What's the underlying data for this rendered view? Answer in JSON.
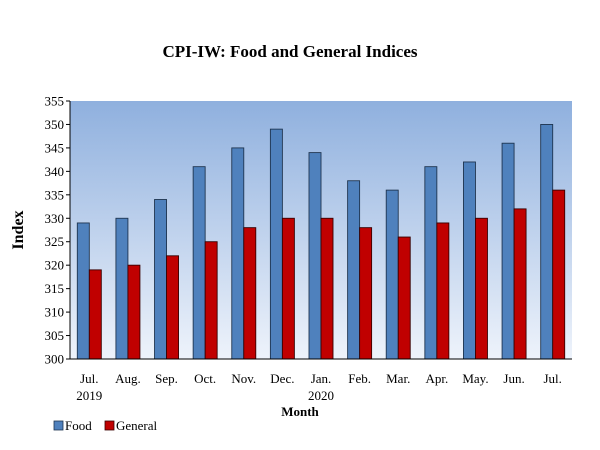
{
  "chart_data": {
    "type": "bar",
    "title": "CPI-IW: Food and General Indices",
    "xlabel": "Month",
    "ylabel": "Index",
    "ylim": [
      300,
      355
    ],
    "yticks": [
      300,
      305,
      310,
      315,
      320,
      325,
      330,
      335,
      340,
      345,
      350,
      355
    ],
    "categories": [
      "Jul.",
      "Aug.",
      "Sep.",
      "Oct.",
      "Nov.",
      "Dec.",
      "Jan.",
      "Feb.",
      "Mar.",
      "Apr.",
      "May.",
      "Jun.",
      "Jul."
    ],
    "year_labels": [
      {
        "index": 0,
        "label": "2019"
      },
      {
        "index": 6,
        "label": "2020"
      }
    ],
    "series": [
      {
        "name": "Food",
        "color": "#4f81bd",
        "values": [
          329,
          330,
          334,
          341,
          345,
          349,
          344,
          338,
          336,
          341,
          342,
          346,
          350
        ]
      },
      {
        "name": "General",
        "color": "#c00000",
        "values": [
          319,
          320,
          322,
          325,
          328,
          330,
          330,
          328,
          326,
          329,
          330,
          332,
          336
        ]
      }
    ],
    "legend_position": "bottom-left",
    "grid": false,
    "background": "gradient blue"
  }
}
